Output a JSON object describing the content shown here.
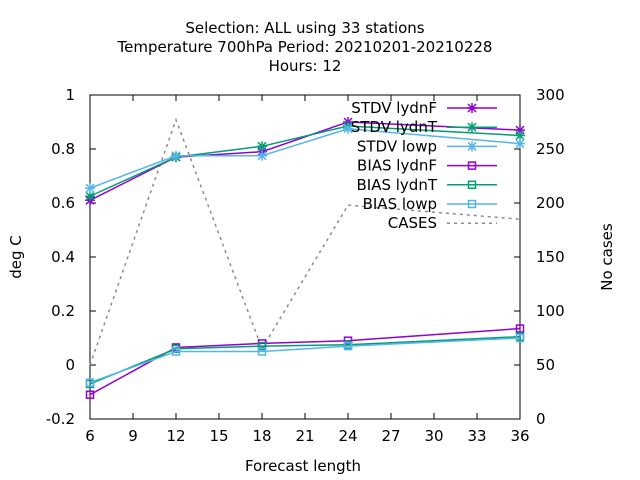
{
  "chart_data": {
    "type": "line",
    "title_lines": [
      "Selection: ALL using    33 stations",
      "Temperature 700hPa   Period: 20210201-20210228",
      "Hours:  12"
    ],
    "xlabel": "Forecast length",
    "ylabel": "deg C",
    "y2label": "No cases",
    "x_ticks": [
      "6",
      "9",
      "12",
      "15",
      "18",
      "21",
      "24",
      "27",
      "30",
      "33",
      "36"
    ],
    "y_ticks": [
      "-0.2",
      "0",
      "0.2",
      "0.4",
      "0.6",
      "0.8",
      "1"
    ],
    "y2_ticks": [
      "0",
      "50",
      "100",
      "150",
      "200",
      "250",
      "300"
    ],
    "xlim": [
      6,
      36
    ],
    "ylim": [
      -0.2,
      1.0
    ],
    "y2lim": [
      0,
      300
    ],
    "grid": false,
    "legend_position": "top-right",
    "x": [
      6,
      12,
      18,
      24,
      36
    ],
    "series": [
      {
        "name": "STDV lydnF",
        "axis": "y",
        "marker": "star",
        "color": "#9400d3",
        "dash": false,
        "values": [
          0.61,
          0.77,
          0.79,
          0.9,
          0.87
        ]
      },
      {
        "name": "STDV lydnT",
        "axis": "y",
        "marker": "star",
        "color": "#009e73",
        "dash": false,
        "values": [
          0.625,
          0.77,
          0.81,
          0.885,
          0.85
        ]
      },
      {
        "name": "STDV lowp",
        "axis": "y",
        "marker": "star",
        "color": "#56b4e9",
        "dash": false,
        "values": [
          0.655,
          0.775,
          0.775,
          0.875,
          0.82
        ]
      },
      {
        "name": "BIAS lydnF",
        "axis": "y",
        "marker": "square",
        "color": "#9400d3",
        "dash": false,
        "values": [
          -0.11,
          0.065,
          0.08,
          0.09,
          0.135
        ]
      },
      {
        "name": "BIAS lydnT",
        "axis": "y",
        "marker": "square",
        "color": "#009e73",
        "dash": false,
        "values": [
          -0.07,
          0.06,
          0.07,
          0.075,
          0.105
        ]
      },
      {
        "name": "BIAS lowp",
        "axis": "y",
        "marker": "square",
        "color": "#56b4e9",
        "dash": false,
        "values": [
          -0.065,
          0.05,
          0.05,
          0.07,
          0.1
        ]
      },
      {
        "name": "CASES",
        "axis": "y2",
        "marker": "none",
        "color": "#8c8c8c",
        "dash": true,
        "values": [
          50,
          277,
          65,
          198,
          185
        ]
      }
    ]
  }
}
